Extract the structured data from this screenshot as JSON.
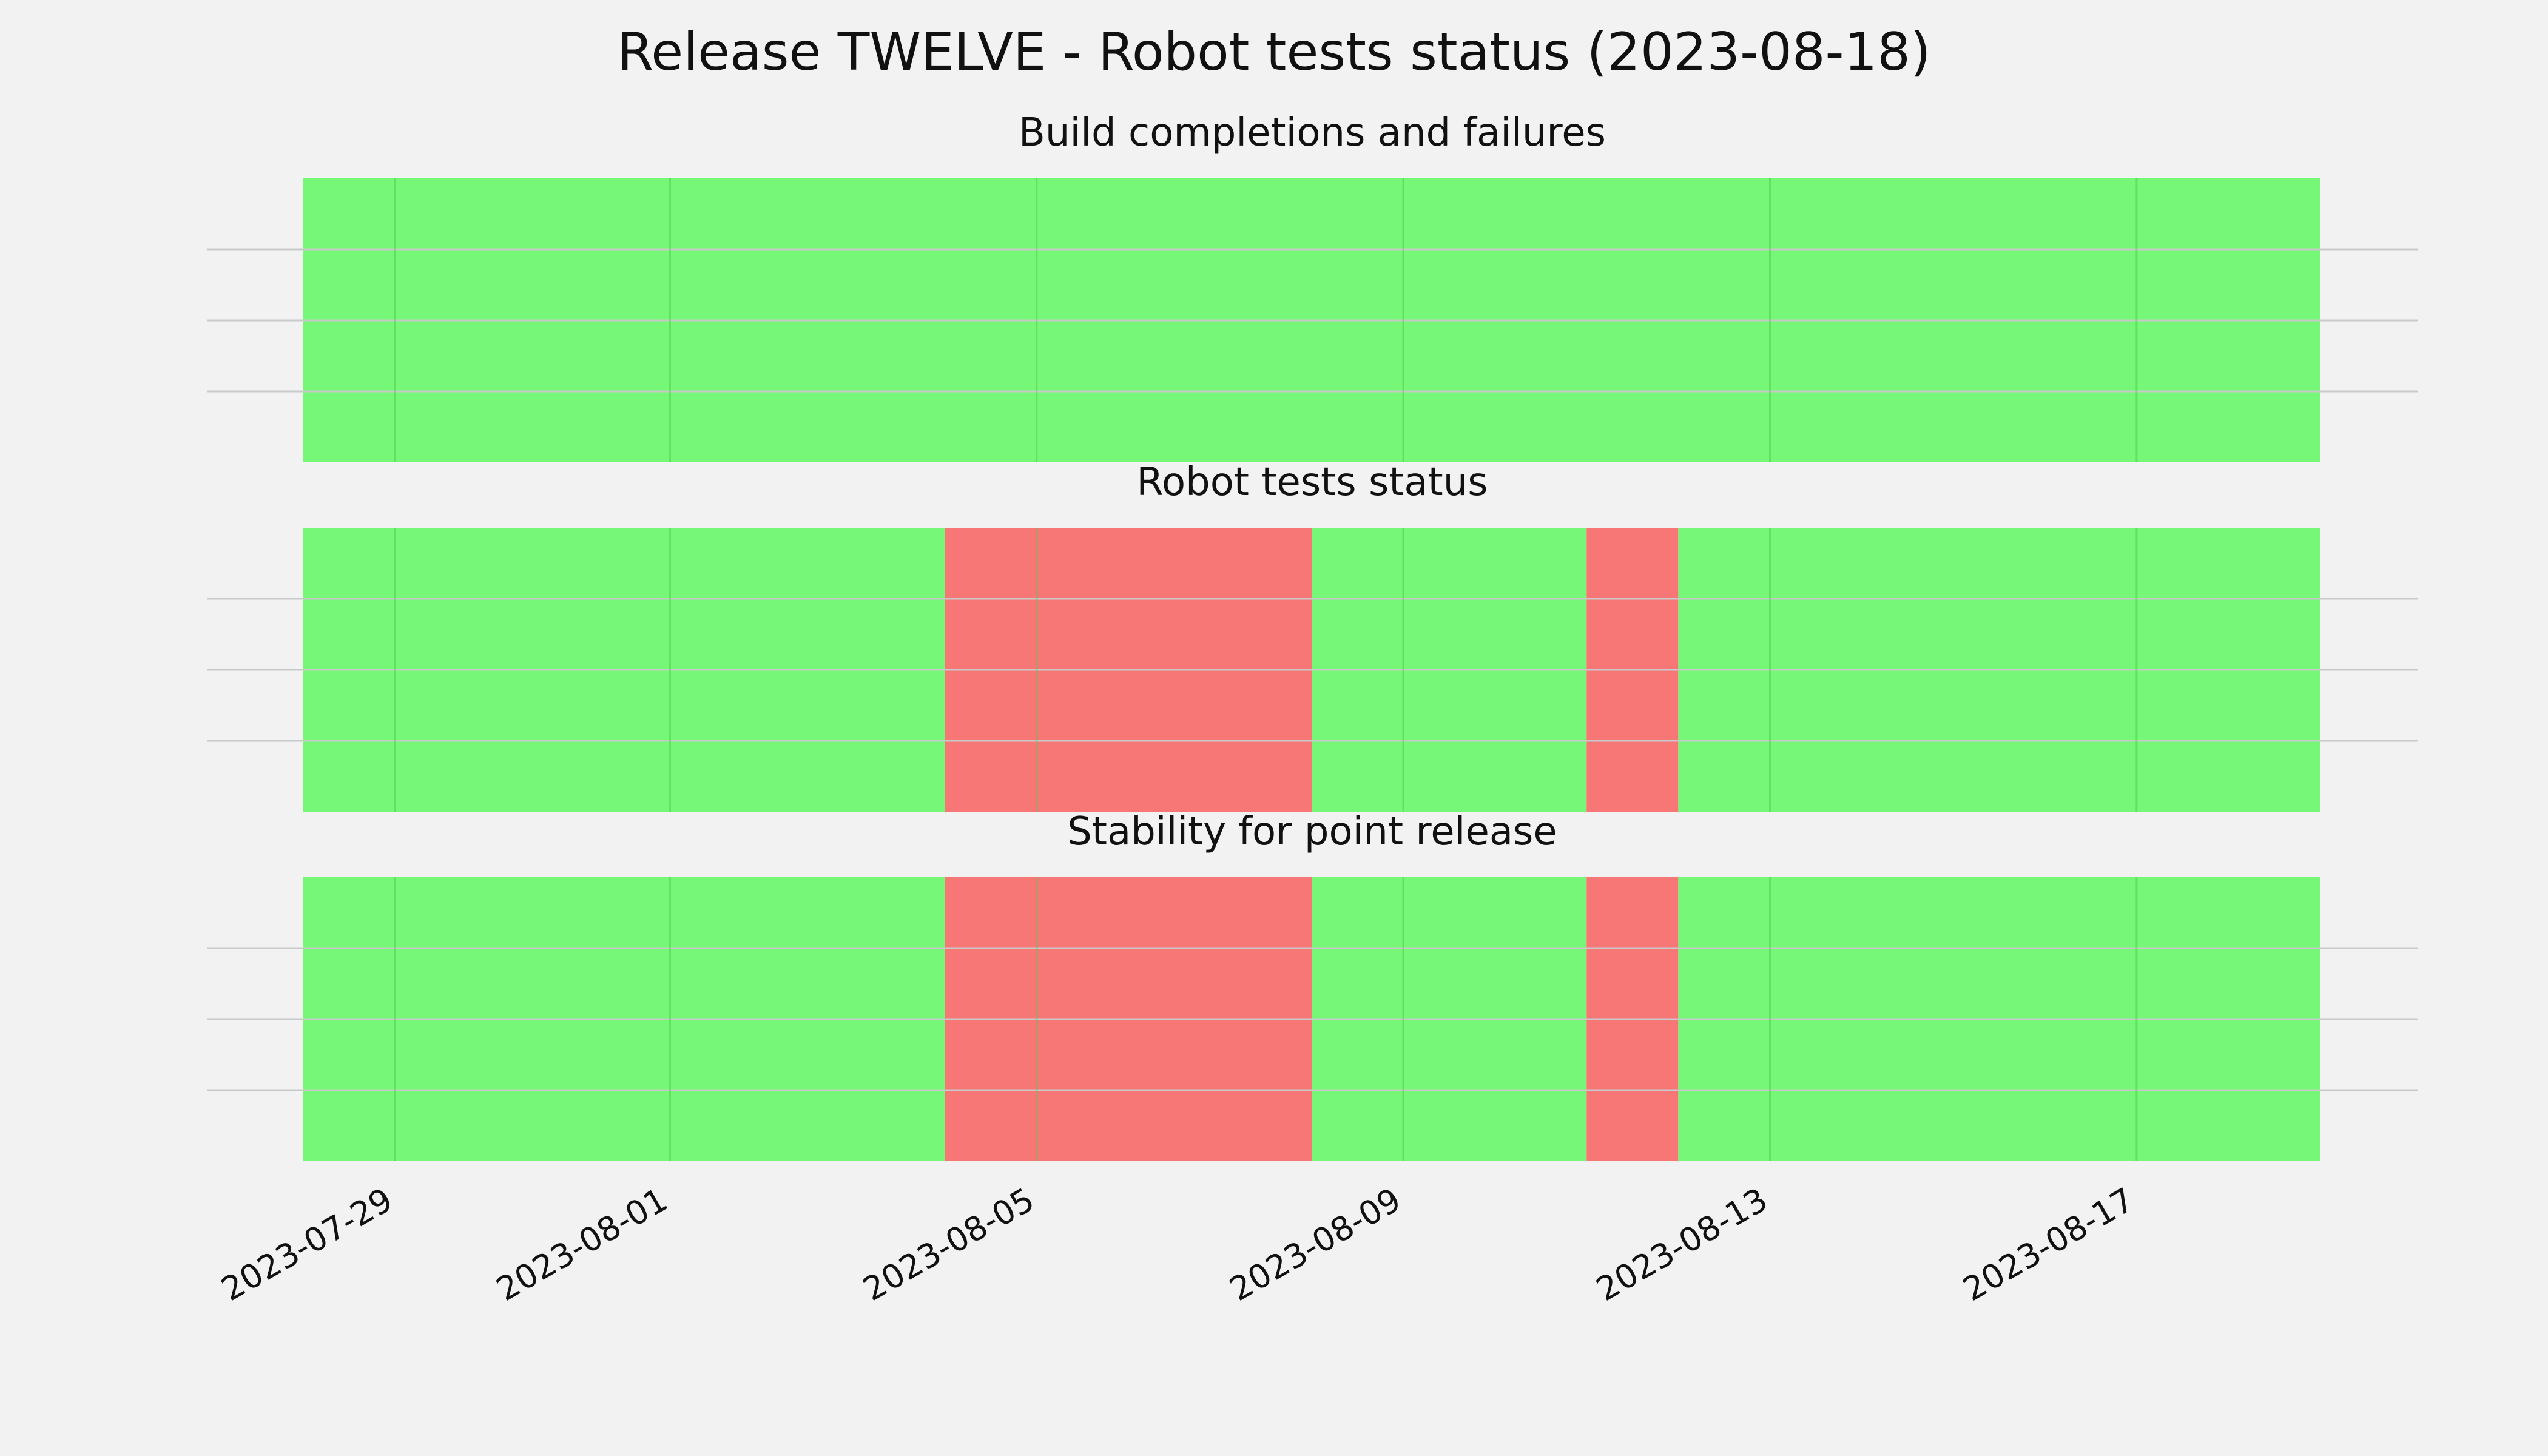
{
  "chart_data": {
    "type": "timeline",
    "title": "Release TWELVE - Robot tests status (2023-08-18)",
    "x_range": [
      "2023-07-28",
      "2023-08-19"
    ],
    "x_ticks": [
      "2023-07-29",
      "2023-08-01",
      "2023-08-05",
      "2023-08-09",
      "2023-08-13",
      "2023-08-17"
    ],
    "colors": {
      "ok": "#77f777",
      "fail": "#f77777"
    },
    "panels": [
      {
        "title": "Build completions and failures",
        "segments": [
          {
            "start": "2023-07-28",
            "end": "2023-08-19",
            "status": "ok"
          }
        ]
      },
      {
        "title": "Robot tests status",
        "segments": [
          {
            "start": "2023-07-28",
            "end": "2023-08-04",
            "status": "ok"
          },
          {
            "start": "2023-08-04",
            "end": "2023-08-08",
            "status": "fail"
          },
          {
            "start": "2023-08-08",
            "end": "2023-08-11",
            "status": "ok"
          },
          {
            "start": "2023-08-11",
            "end": "2023-08-12",
            "status": "fail"
          },
          {
            "start": "2023-08-12",
            "end": "2023-08-19",
            "status": "ok"
          }
        ]
      },
      {
        "title": "Stability for point release",
        "segments": [
          {
            "start": "2023-07-28",
            "end": "2023-08-04",
            "status": "ok"
          },
          {
            "start": "2023-08-04",
            "end": "2023-08-08",
            "status": "fail"
          },
          {
            "start": "2023-08-08",
            "end": "2023-08-11",
            "status": "ok"
          },
          {
            "start": "2023-08-11",
            "end": "2023-08-12",
            "status": "fail"
          },
          {
            "start": "2023-08-12",
            "end": "2023-08-19",
            "status": "ok"
          }
        ]
      }
    ]
  }
}
